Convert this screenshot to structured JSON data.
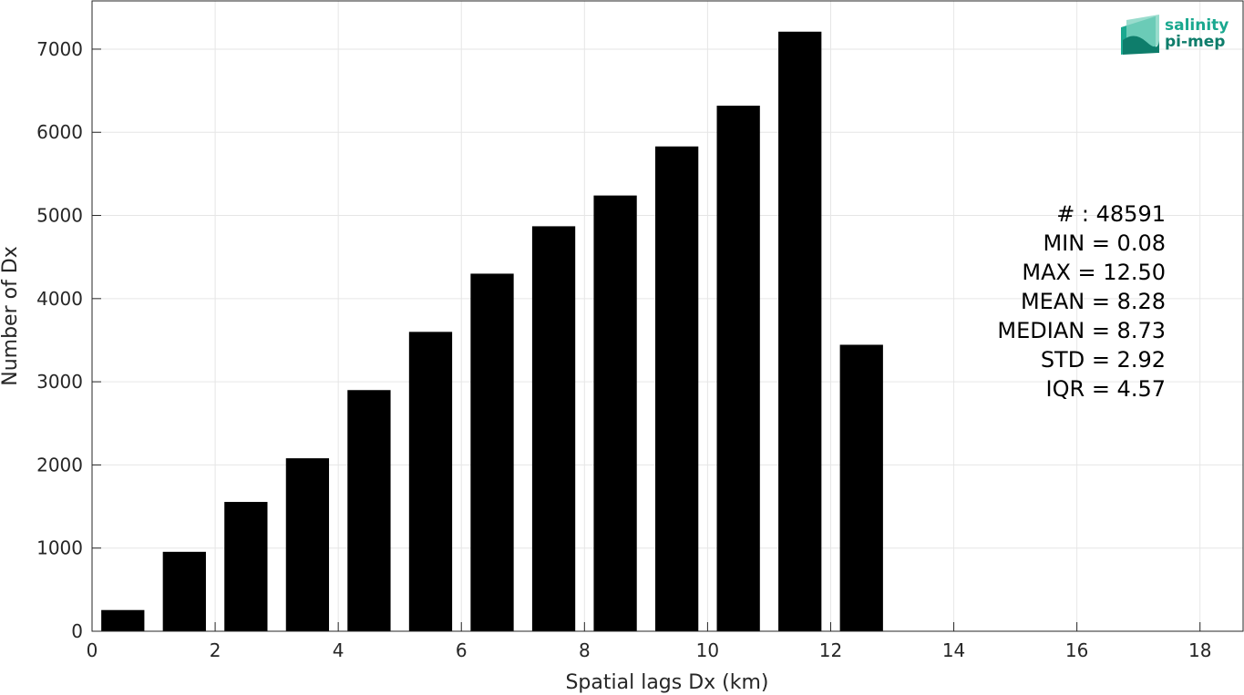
{
  "chart_data": {
    "type": "bar",
    "xlabel": "Spatial lags Dx (km)",
    "ylabel": "Number of Dx",
    "xlim": [
      0,
      18.7
    ],
    "ylim": [
      0,
      7580
    ],
    "x_ticks": [
      0,
      2,
      4,
      6,
      8,
      10,
      12,
      14,
      16,
      18
    ],
    "y_ticks": [
      0,
      1000,
      2000,
      3000,
      4000,
      5000,
      6000,
      7000
    ],
    "grid": true,
    "bar_color": "#000000",
    "bar_width": 0.7,
    "x": [
      0.5,
      1.5,
      2.5,
      3.5,
      4.5,
      5.5,
      6.5,
      7.5,
      8.5,
      9.5,
      10.5,
      11.5,
      12.5
    ],
    "values": [
      255,
      955,
      1555,
      2080,
      2900,
      3600,
      4300,
      4870,
      5240,
      5830,
      6320,
      7210,
      3445
    ],
    "annotations": [
      "# : 48591",
      "MIN = 0.08",
      "MAX =  12.50",
      "MEAN = 8.28",
      "MEDIAN = 8.73",
      "STD = 2.92",
      "IQR = 4.57"
    ]
  },
  "logo": {
    "line1": "salinity",
    "line2": "pi-mep",
    "color_1": "#1aa88f",
    "color_2": "#0e7d6b"
  }
}
